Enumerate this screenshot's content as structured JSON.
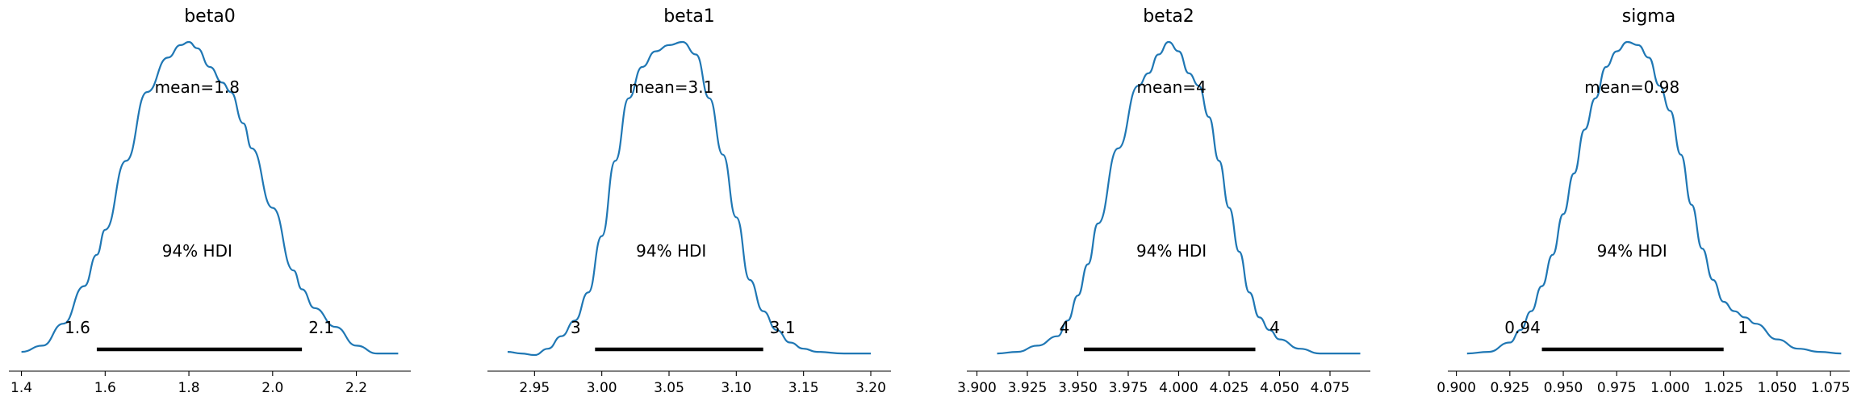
{
  "chart_data": [
    {
      "type": "area",
      "title": "beta0",
      "mean_label": "mean=1.8",
      "hdi_label": "94% HDI",
      "hdi": [
        1.58,
        2.07
      ],
      "hdi_low_label": "1.6",
      "hdi_high_label": "2.1",
      "xlim": [
        1.37,
        2.33
      ],
      "x_ticks": [
        1.4,
        1.6,
        1.8,
        2.0,
        2.2
      ],
      "x_tick_labels": [
        "1.4",
        "1.6",
        "1.8",
        "2.0",
        "2.2"
      ],
      "density": {
        "x": [
          1.4,
          1.45,
          1.5,
          1.55,
          1.58,
          1.6,
          1.65,
          1.7,
          1.75,
          1.78,
          1.8,
          1.82,
          1.85,
          1.88,
          1.9,
          1.93,
          1.95,
          2.0,
          2.05,
          2.07,
          2.1,
          2.15,
          2.2,
          2.25,
          2.3
        ],
        "y": [
          0.01,
          0.03,
          0.1,
          0.22,
          0.32,
          0.4,
          0.62,
          0.84,
          0.95,
          0.99,
          1.0,
          0.98,
          0.92,
          0.87,
          0.84,
          0.74,
          0.66,
          0.47,
          0.27,
          0.21,
          0.15,
          0.09,
          0.03,
          0.005,
          0.005
        ]
      }
    },
    {
      "type": "area",
      "title": "beta1",
      "mean_label": "mean=3.1",
      "hdi_label": "94% HDI",
      "hdi": [
        2.995,
        3.12
      ],
      "hdi_low_label": "3",
      "hdi_high_label": "3.1",
      "xlim": [
        2.915,
        3.215
      ],
      "x_ticks": [
        2.95,
        3.0,
        3.05,
        3.1,
        3.15,
        3.2
      ],
      "x_tick_labels": [
        "2.95",
        "3.00",
        "3.05",
        "3.10",
        "3.15",
        "3.20"
      ],
      "density": {
        "x": [
          2.93,
          2.94,
          2.95,
          2.96,
          2.97,
          2.98,
          2.99,
          3.0,
          3.01,
          3.02,
          3.03,
          3.04,
          3.05,
          3.06,
          3.07,
          3.08,
          3.09,
          3.1,
          3.11,
          3.12,
          3.13,
          3.14,
          3.15,
          3.16,
          3.18,
          3.2
        ],
        "y": [
          0.01,
          0.005,
          0.0,
          0.02,
          0.06,
          0.11,
          0.2,
          0.38,
          0.62,
          0.82,
          0.92,
          0.97,
          0.99,
          1.0,
          0.96,
          0.82,
          0.64,
          0.44,
          0.24,
          0.14,
          0.08,
          0.04,
          0.02,
          0.01,
          0.005,
          0.005
        ]
      }
    },
    {
      "type": "area",
      "title": "beta2",
      "mean_label": "mean=4",
      "hdi_label": "94% HDI",
      "hdi": [
        3.953,
        4.038
      ],
      "hdi_low_label": "4",
      "hdi_high_label": "4",
      "xlim": [
        3.895,
        4.095
      ],
      "x_ticks": [
        3.9,
        3.925,
        3.95,
        3.975,
        4.0,
        4.025,
        4.05,
        4.075
      ],
      "x_tick_labels": [
        "3.900",
        "3.925",
        "3.950",
        "3.975",
        "4.000",
        "4.025",
        "4.050",
        "4.075"
      ],
      "density": {
        "x": [
          3.91,
          3.92,
          3.93,
          3.94,
          3.945,
          3.95,
          3.955,
          3.96,
          3.97,
          3.98,
          3.985,
          3.99,
          3.995,
          4.0,
          4.005,
          4.01,
          4.015,
          4.02,
          4.025,
          4.03,
          4.035,
          4.04,
          4.045,
          4.05,
          4.06,
          4.07,
          4.08,
          4.09
        ],
        "y": [
          0.005,
          0.01,
          0.03,
          0.06,
          0.11,
          0.19,
          0.29,
          0.42,
          0.66,
          0.86,
          0.9,
          0.96,
          1.0,
          0.97,
          0.9,
          0.86,
          0.76,
          0.62,
          0.47,
          0.33,
          0.2,
          0.12,
          0.08,
          0.05,
          0.02,
          0.005,
          0.005,
          0.005
        ]
      }
    },
    {
      "type": "area",
      "title": "sigma",
      "mean_label": "mean=0.98",
      "hdi_label": "94% HDI",
      "hdi": [
        0.94,
        1.025
      ],
      "hdi_low_label": "0.94",
      "hdi_high_label": "1",
      "xlim": [
        0.896,
        1.084
      ],
      "x_ticks": [
        0.9,
        0.925,
        0.95,
        0.975,
        1.0,
        1.025,
        1.05,
        1.075
      ],
      "x_tick_labels": [
        "0.900",
        "0.925",
        "0.950",
        "0.975",
        "1.000",
        "1.025",
        "1.050",
        "1.075"
      ],
      "density": {
        "x": [
          0.905,
          0.915,
          0.925,
          0.93,
          0.935,
          0.94,
          0.945,
          0.95,
          0.955,
          0.96,
          0.965,
          0.97,
          0.975,
          0.98,
          0.985,
          0.99,
          0.995,
          1.0,
          1.005,
          1.01,
          1.015,
          1.02,
          1.025,
          1.03,
          1.035,
          1.04,
          1.05,
          1.06,
          1.07,
          1.08
        ],
        "y": [
          0.005,
          0.01,
          0.04,
          0.08,
          0.14,
          0.22,
          0.32,
          0.45,
          0.58,
          0.72,
          0.82,
          0.92,
          0.97,
          1.0,
          0.99,
          0.95,
          0.86,
          0.78,
          0.64,
          0.48,
          0.34,
          0.24,
          0.17,
          0.14,
          0.12,
          0.1,
          0.05,
          0.02,
          0.01,
          0.005
        ]
      }
    }
  ]
}
